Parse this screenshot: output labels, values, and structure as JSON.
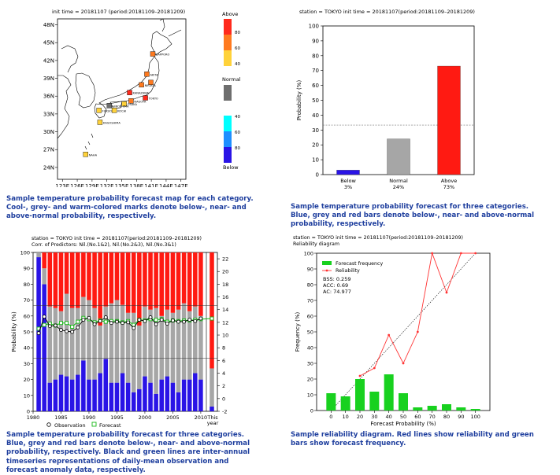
{
  "map": {
    "header": "init time = 20181107 (period:20181109–20181209)",
    "lat_labels": [
      "48N",
      "45N",
      "42N",
      "39N",
      "36N",
      "33N",
      "30N",
      "27N",
      "24N"
    ],
    "lon_labels": [
      "123E",
      "126E",
      "129E",
      "132E",
      "135E",
      "138E",
      "141E",
      "144E",
      "147E"
    ],
    "stations": [
      {
        "name": "SAPPORO",
        "lat": 43.1,
        "lon": 141.3,
        "category": "above",
        "level": "60"
      },
      {
        "name": "AKITA",
        "lat": 39.7,
        "lon": 140.1,
        "category": "above",
        "level": "60"
      },
      {
        "name": "",
        "lat": 38.3,
        "lon": 140.9,
        "category": "above",
        "level": "60"
      },
      {
        "name": "NIIGATA",
        "lat": 37.9,
        "lon": 139.0,
        "category": "above",
        "level": "60"
      },
      {
        "name": "KANAZAWA",
        "lat": 36.6,
        "lon": 136.6,
        "category": "above",
        "level": "80"
      },
      {
        "name": "TOKYO",
        "lat": 35.7,
        "lon": 139.8,
        "category": "above",
        "level": "80"
      },
      {
        "name": "NAGOYA",
        "lat": 35.2,
        "lon": 136.9,
        "category": "above",
        "level": "60"
      },
      {
        "name": "OSAKA",
        "lat": 34.7,
        "lon": 135.5,
        "category": "above",
        "level": "40"
      },
      {
        "name": "HIROSHIMA",
        "lat": 34.4,
        "lon": 132.5,
        "category": "normal",
        "level": ""
      },
      {
        "name": "FUKUOKA",
        "lat": 33.6,
        "lon": 130.4,
        "category": "above",
        "level": "40"
      },
      {
        "name": "KOCHI",
        "lat": 33.6,
        "lon": 133.5,
        "category": "above",
        "level": "40"
      },
      {
        "name": "KAGOSHIMA",
        "lat": 31.6,
        "lon": 130.6,
        "category": "above",
        "level": "40"
      },
      {
        "name": "NAHA",
        "lat": 26.2,
        "lon": 127.7,
        "category": "above",
        "level": "40"
      }
    ],
    "legend": {
      "above_title": "Above",
      "above_levels": [
        "80",
        "60",
        "40"
      ],
      "above_colors": [
        "#ff2a1c",
        "#ff7a1f",
        "#ffd23a"
      ],
      "normal_title": "Normal",
      "normal_color": "#6e6e6e",
      "below_levels": [
        "40",
        "60",
        "80"
      ],
      "below_colors": [
        "#00ffff",
        "#1e8fff",
        "#2a14e6"
      ],
      "below_title": "Below"
    },
    "caption": [
      "Sample temperature probability forecast map for each category.",
      "Cool-, grey- and warm-colored marks denote below-, near- and",
      "above-normal probability, respectively."
    ]
  },
  "bar": {
    "header": "station = TOKYO init time = 20181107(period:20181109–20181209)",
    "chart_data": {
      "type": "bar",
      "categories": [
        "Below",
        "Normal",
        "Above"
      ],
      "values": [
        3,
        24,
        73
      ],
      "value_labels": [
        "3%",
        "24%",
        "73%"
      ],
      "colors": [
        "#2a14e6",
        "#a6a6a6",
        "#ff1a12"
      ],
      "ylabel": "Probability (%)",
      "ylim": [
        0,
        100
      ],
      "yticks": [
        "0",
        "10",
        "20",
        "30",
        "40",
        "50",
        "60",
        "70",
        "80",
        "90",
        "100"
      ],
      "reference_line": 33.3
    },
    "caption": [
      "Sample temperature probability forecast for three categories.",
      "Blue, grey and red bars denote below-, near- and above-normal",
      "probability, respectively."
    ]
  },
  "ts": {
    "header1": "station = TOKYO init time = 20181107(period:20181109–20181209)",
    "header2": "Corr. of Predictors: Nil.(No.1&2), Nil.(No.2&3), Nil.(No.3&1)",
    "chart_data": {
      "type": "bar",
      "stacked": true,
      "x": [
        1981,
        1982,
        1983,
        1984,
        1985,
        1986,
        1987,
        1988,
        1989,
        1990,
        1991,
        1992,
        1993,
        1994,
        1995,
        1996,
        1997,
        1998,
        1999,
        2000,
        2001,
        2002,
        2003,
        2004,
        2005,
        2006,
        2007,
        2008,
        2009,
        2010
      ],
      "series": [
        {
          "name": "below",
          "color": "#2a14e6",
          "values": [
            97,
            80,
            18,
            20,
            23,
            22,
            20,
            23,
            32,
            20,
            20,
            24,
            33,
            18,
            18,
            24,
            18,
            12,
            14,
            22,
            18,
            11,
            20,
            22,
            18,
            12,
            20,
            20,
            24,
            20
          ]
        },
        {
          "name": "normal",
          "color": "#a6a6a6",
          "values": [
            3,
            10,
            48,
            45,
            40,
            52,
            45,
            42,
            40,
            50,
            45,
            30,
            33,
            50,
            52,
            43,
            44,
            50,
            40,
            44,
            46,
            54,
            40,
            42,
            44,
            52,
            48,
            43,
            42,
            40
          ]
        },
        {
          "name": "above",
          "color": "#ff1a12",
          "values": [
            0,
            10,
            34,
            35,
            37,
            26,
            35,
            35,
            28,
            30,
            35,
            46,
            34,
            32,
            30,
            33,
            38,
            38,
            46,
            34,
            36,
            35,
            40,
            36,
            38,
            36,
            32,
            37,
            34,
            40
          ]
        }
      ],
      "this_year": {
        "label": "This year",
        "below": 3,
        "normal": 24,
        "above": 73
      },
      "observation": {
        "name": "Observation",
        "values": [
          10.3,
          12.9,
          11.4,
          11.5,
          10.8,
          10.6,
          10.5,
          11.2,
          12.4,
          12.7,
          11.7,
          12.2,
          12.8,
          11.9,
          12.1,
          11.9,
          12.0,
          11.1,
          12.4,
          12.2,
          12.8,
          11.7,
          12.4,
          11.8,
          12.3,
          12.1,
          12.1,
          12.4,
          12.2,
          12.6
        ]
      },
      "forecast": {
        "name": "Forecast",
        "values": [
          11.0,
          11.6,
          11.8,
          11.5,
          11.9,
          11.9,
          11.3,
          12.1,
          12.7,
          12.5,
          12.0,
          12.3,
          12.1,
          12.2,
          12.2,
          12.0,
          12.2,
          11.6,
          12.4,
          12.3,
          12.5,
          12.4,
          12.5,
          12.1,
          12.3,
          12.2,
          12.3,
          12.3,
          12.4,
          12.5,
          12.6
        ]
      },
      "ylabel": "Probability (%)",
      "ylim": [
        0,
        100
      ],
      "yticks": [
        "0",
        "10",
        "20",
        "30",
        "40",
        "50",
        "60",
        "70",
        "80",
        "90",
        "100"
      ],
      "y2lim": [
        -2,
        23
      ],
      "y2ticks": [
        "-2",
        "0",
        "2",
        "4",
        "6",
        "8",
        "10",
        "12",
        "14",
        "16",
        "18",
        "20",
        "22"
      ],
      "xticks": [
        "1980",
        "1985",
        "1990",
        "1995",
        "2000",
        "2005",
        "2010"
      ],
      "reference_lines": [
        33.3,
        66.7
      ]
    },
    "caption": [
      "Sample temperature probability forecast for three categories.",
      "Blue, grey and red bars denote below-, near- and above-normal",
      "probability, respectively. Black and green lines are inter-annual",
      "timeseries representations of daily-mean observation and",
      "forecast anomaly data, respectively."
    ]
  },
  "rel": {
    "header1": "station = TOKYO init time = 20181107(period:20181109–20181209)",
    "header2": "Reliability diagram",
    "chart_data": {
      "type": "bar",
      "x": [
        0,
        10,
        20,
        30,
        40,
        50,
        60,
        70,
        80,
        90,
        100
      ],
      "series": [
        {
          "name": "Forecast frequency",
          "color": "#18d11f",
          "values": [
            11,
            9,
            20,
            12,
            23,
            11,
            2,
            3,
            4,
            2,
            1
          ]
        },
        {
          "name": "Reliability",
          "color": "#ff3333",
          "x": [
            20,
            30,
            40,
            50,
            60,
            70,
            80,
            90,
            100
          ],
          "values": [
            22,
            27,
            48,
            30,
            50,
            100,
            75,
            100,
            100
          ]
        }
      ],
      "stats": [
        "BSS: 0.259",
        "ACC: 0.69",
        "AC: 74.977"
      ],
      "xlabel": "Forecast Probability (%)",
      "ylabel": "Frequency (%)",
      "ylim": [
        0,
        100
      ],
      "yticks": [
        "0",
        "10",
        "20",
        "30",
        "40",
        "50",
        "60",
        "70",
        "80",
        "90",
        "100"
      ],
      "xticks": [
        "0",
        "10",
        "20",
        "30",
        "40",
        "50",
        "60",
        "70",
        "80",
        "90",
        "100"
      ]
    },
    "caption": [
      "Sample reliability diagram. Red lines show reliability and green",
      "bars show forecast frequency."
    ]
  }
}
